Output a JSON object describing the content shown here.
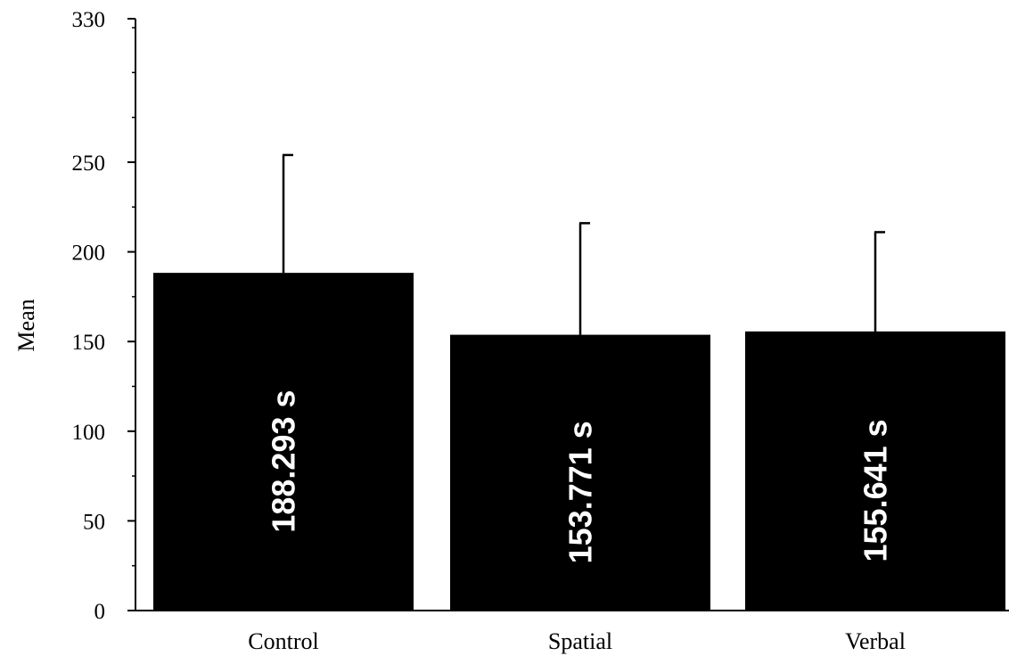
{
  "chart_data": {
    "type": "bar",
    "title": "",
    "xlabel": "",
    "ylabel": "Mean",
    "ylim": [
      0,
      330
    ],
    "yticks": [
      0,
      50,
      100,
      150,
      200,
      250,
      330
    ],
    "grid": false,
    "categories": [
      "Control",
      "Spatial",
      "Verbal"
    ],
    "values": [
      188.293,
      153.771,
      155.641
    ],
    "error_upper": [
      254,
      216,
      211
    ],
    "data_labels": [
      "188.293 s",
      "153.771 s",
      "155.641 s"
    ],
    "bar_color": "#000000",
    "label_color": "#ffffff"
  }
}
